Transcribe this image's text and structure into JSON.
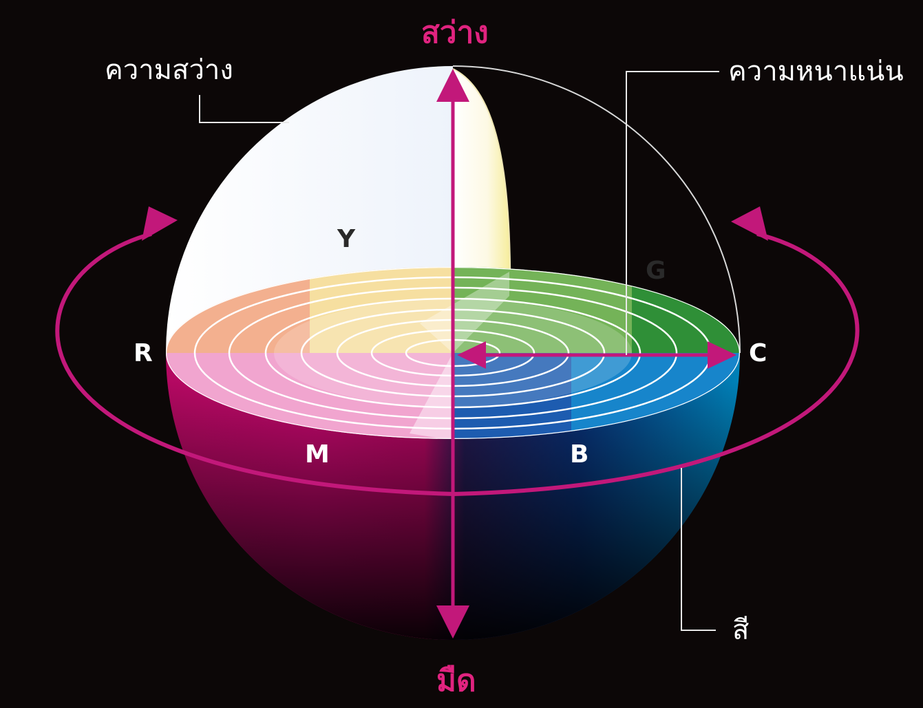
{
  "axis": {
    "top_label": "สว่าง",
    "bottom_label": "มืด"
  },
  "callouts": {
    "lightness": "ความสว่าง",
    "saturation": "ความหนาแน่น",
    "hue": "สี"
  },
  "hues": {
    "yellow": "Y",
    "green": "G",
    "red": "R",
    "cyan": "C",
    "magenta": "M",
    "blue": "B"
  },
  "colors": {
    "background": "#0c0707",
    "axis": "#c2187a",
    "magenta": "#e4097f",
    "blue": "#004a9e",
    "cyan": "#0098d8",
    "green": "#2e8f35",
    "yellow": "#f7e98a",
    "red": "#f0927a",
    "white": "#ffffff"
  }
}
